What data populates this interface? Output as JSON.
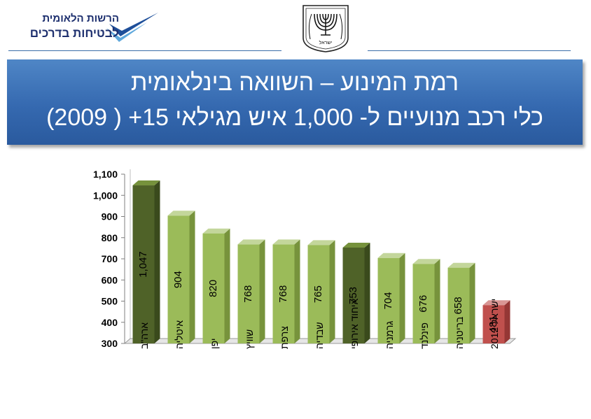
{
  "header": {
    "logo_line1": "הרשות הלאומית",
    "logo_line2": "לבטיחות בדרכים",
    "emblem_caption": "ישראל"
  },
  "banner": {
    "title": "רמת המינוע – השוואה בינלאומית",
    "subtitle": "כלי רכב מנועיים ל- 1,000 איש מגילאי 15+ ( 2009)"
  },
  "colors": {
    "banner": "#3569b0",
    "bar_light_green": "#9bbb59",
    "bar_dark_green": "#4f6228",
    "bar_red": "#c0504d"
  },
  "chart_data": {
    "type": "bar",
    "categories": [
      "ארה\"ב",
      "איטליה",
      "יפן",
      "שוויץ",
      "צרפת",
      "שבדיה",
      "איחוד אירופי",
      "גרמניה",
      "פינלנד",
      "בריטניה",
      "ישראל 2012"
    ],
    "values": [
      1047,
      904,
      820,
      768,
      768,
      765,
      753,
      704,
      676,
      658,
      481
    ],
    "data_labels": [
      "1,047",
      "904",
      "820",
      "768",
      "768",
      "765",
      "753",
      "704",
      "676",
      "658",
      "481"
    ],
    "bar_colors": [
      "dark",
      "light",
      "light",
      "light",
      "light",
      "light",
      "dark",
      "light",
      "light",
      "light",
      "red"
    ],
    "ylim": [
      300,
      1100
    ],
    "yticks": [
      "300",
      "400",
      "500",
      "600",
      "700",
      "800",
      "900",
      "1,000",
      "1,100"
    ],
    "ytick_values": [
      300,
      400,
      500,
      600,
      700,
      800,
      900,
      1000,
      1100
    ],
    "grid": false,
    "legend": "none"
  }
}
